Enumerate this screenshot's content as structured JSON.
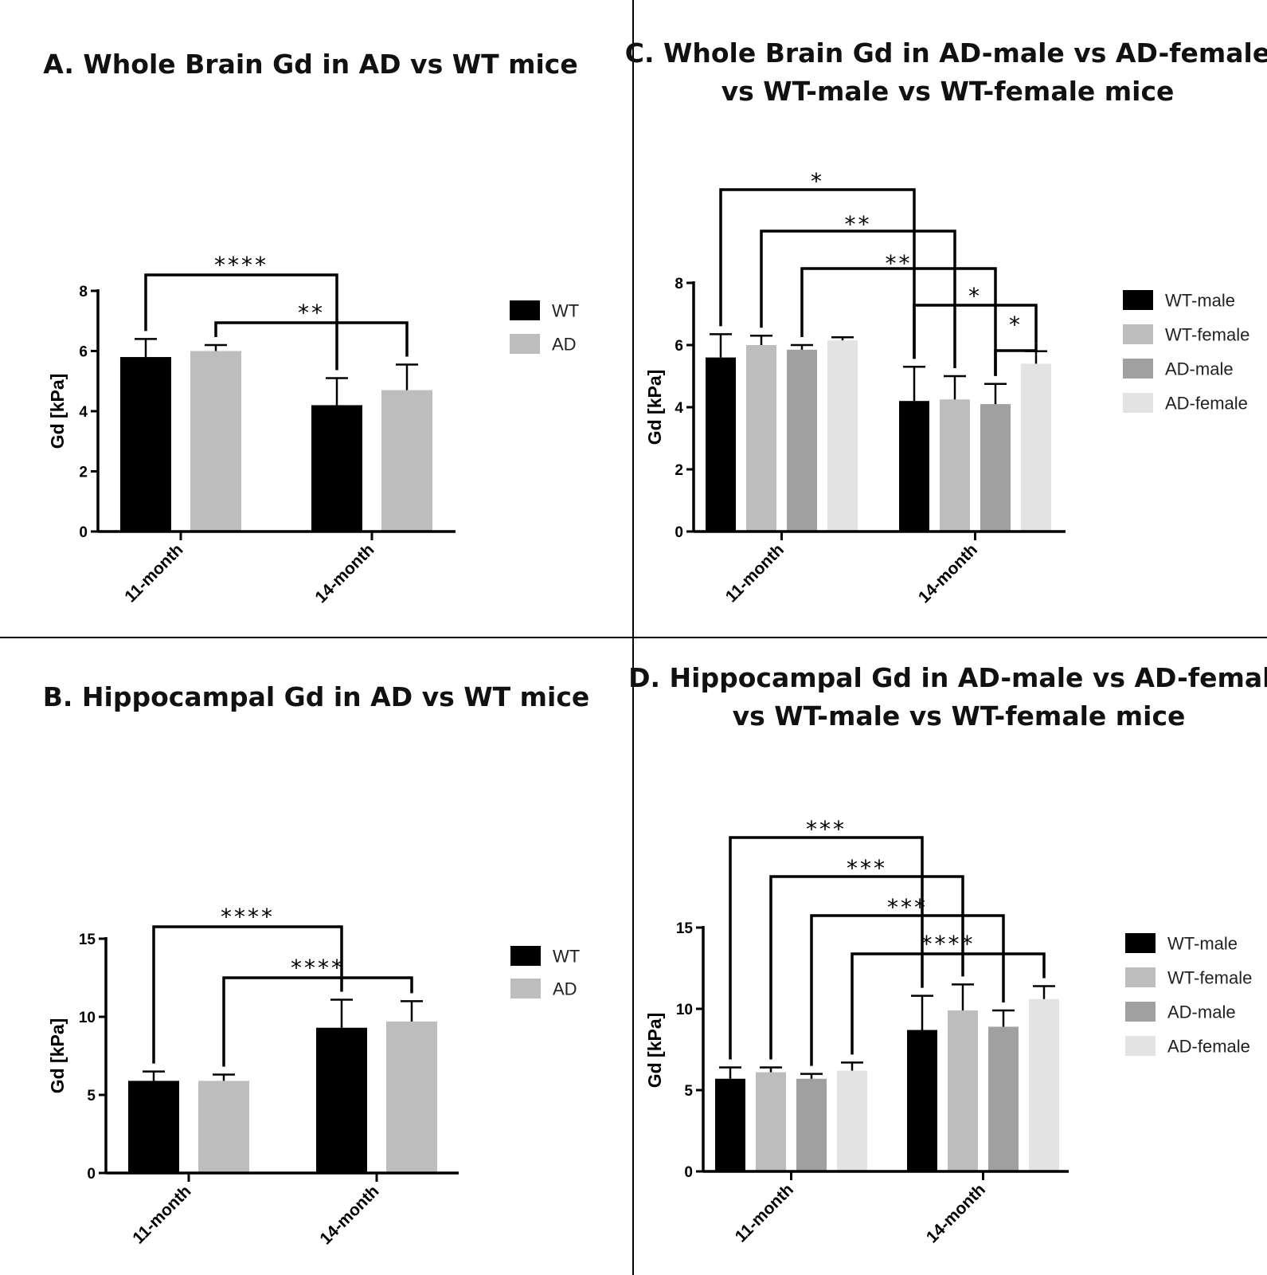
{
  "chart_data": [
    {
      "id": "A",
      "type": "bar",
      "title": "A. Whole Brain Gd in AD vs WT mice",
      "ylabel": "Gd [kPa]",
      "ylim": [
        0,
        8
      ],
      "yticks": [
        0,
        2,
        4,
        6,
        8
      ],
      "categories": [
        "11-month",
        "14-month"
      ],
      "series": [
        {
          "name": "WT",
          "color": "#000000",
          "values": [
            5.8,
            4.2
          ],
          "errors": [
            0.6,
            0.9
          ]
        },
        {
          "name": "AD",
          "color": "#bdbdbd",
          "values": [
            6.0,
            4.7
          ],
          "errors": [
            0.2,
            0.85
          ]
        }
      ],
      "annotations": [
        {
          "from": [
            0,
            0
          ],
          "to": [
            1,
            0
          ],
          "label": "****"
        },
        {
          "from": [
            0,
            1
          ],
          "to": [
            1,
            1
          ],
          "label": "**"
        }
      ]
    },
    {
      "id": "B",
      "type": "bar",
      "title": "B. Hippocampal Gd in AD vs WT mice",
      "ylabel": "Gd [kPa]",
      "ylim": [
        0,
        15
      ],
      "yticks": [
        0,
        5,
        10,
        15
      ],
      "categories": [
        "11-month",
        "14-month"
      ],
      "series": [
        {
          "name": "WT",
          "color": "#000000",
          "values": [
            5.9,
            9.3
          ],
          "errors": [
            0.6,
            1.8
          ]
        },
        {
          "name": "AD",
          "color": "#bdbdbd",
          "values": [
            5.9,
            9.7
          ],
          "errors": [
            0.4,
            1.3
          ]
        }
      ],
      "annotations": [
        {
          "from": [
            0,
            0
          ],
          "to": [
            1,
            0
          ],
          "label": "****"
        },
        {
          "from": [
            0,
            1
          ],
          "to": [
            1,
            1
          ],
          "label": "****"
        }
      ]
    },
    {
      "id": "C",
      "type": "bar",
      "title": "C. Whole Brain Gd in AD-male vs AD-female\nvs WT-male vs WT-female mice",
      "ylabel": "Gd [kPa]",
      "ylim": [
        0,
        8
      ],
      "yticks": [
        0,
        2,
        4,
        6,
        8
      ],
      "categories": [
        "11-month",
        "14-month"
      ],
      "series": [
        {
          "name": "WT-male",
          "color": "#000000",
          "values": [
            5.6,
            4.2
          ],
          "errors": [
            0.75,
            1.1
          ]
        },
        {
          "name": "WT-female",
          "color": "#bdbdbd",
          "values": [
            6.0,
            4.25
          ],
          "errors": [
            0.3,
            0.75
          ]
        },
        {
          "name": "AD-male",
          "color": "#a0a0a0",
          "values": [
            5.85,
            4.1
          ],
          "errors": [
            0.15,
            0.65
          ]
        },
        {
          "name": "AD-female",
          "color": "#e3e3e3",
          "values": [
            6.15,
            5.4
          ],
          "errors": [
            0.1,
            0.4
          ]
        }
      ],
      "annotations": [
        {
          "from": [
            0,
            0
          ],
          "to": [
            1,
            0
          ],
          "label": "*"
        },
        {
          "from": [
            0,
            1
          ],
          "to": [
            1,
            1
          ],
          "label": "**"
        },
        {
          "from": [
            0,
            2
          ],
          "to": [
            1,
            2
          ],
          "label": "**"
        },
        {
          "from": [
            1,
            0
          ],
          "to": [
            1,
            3
          ],
          "label": "*"
        },
        {
          "from": [
            1,
            2
          ],
          "to": [
            1,
            3
          ],
          "label": "*"
        }
      ]
    },
    {
      "id": "D",
      "type": "bar",
      "title": "D. Hippocampal Gd in AD-male vs AD-female\nvs WT-male vs WT-female mice",
      "ylabel": "Gd [kPa]",
      "ylim": [
        0,
        15
      ],
      "yticks": [
        0,
        5,
        10,
        15
      ],
      "categories": [
        "11-month",
        "14-month"
      ],
      "series": [
        {
          "name": "WT-male",
          "color": "#000000",
          "values": [
            5.7,
            8.7
          ],
          "errors": [
            0.7,
            2.1
          ]
        },
        {
          "name": "WT-female",
          "color": "#bdbdbd",
          "values": [
            6.1,
            9.9
          ],
          "errors": [
            0.3,
            1.6
          ]
        },
        {
          "name": "AD-male",
          "color": "#a0a0a0",
          "values": [
            5.7,
            8.9
          ],
          "errors": [
            0.3,
            1.0
          ]
        },
        {
          "name": "AD-female",
          "color": "#e3e3e3",
          "values": [
            6.2,
            10.6
          ],
          "errors": [
            0.5,
            0.8
          ]
        }
      ],
      "annotations": [
        {
          "from": [
            0,
            0
          ],
          "to": [
            1,
            0
          ],
          "label": "***"
        },
        {
          "from": [
            0,
            1
          ],
          "to": [
            1,
            1
          ],
          "label": "***"
        },
        {
          "from": [
            0,
            2
          ],
          "to": [
            1,
            2
          ],
          "label": "***"
        },
        {
          "from": [
            0,
            3
          ],
          "to": [
            1,
            3
          ],
          "label": "****"
        }
      ]
    }
  ]
}
